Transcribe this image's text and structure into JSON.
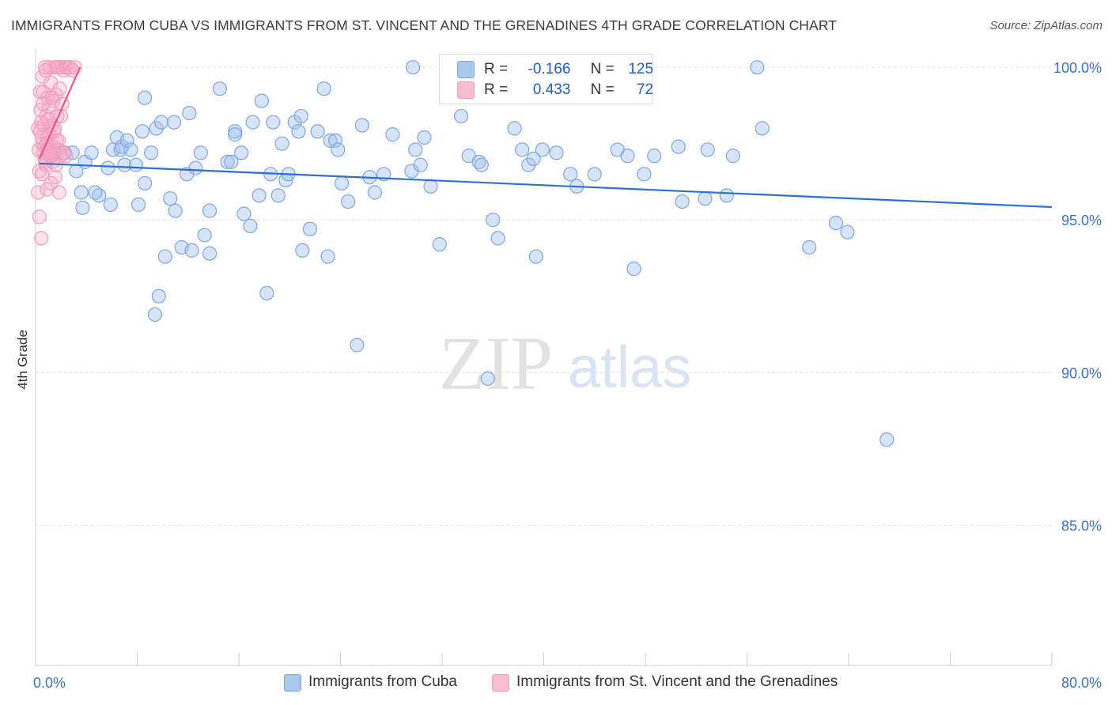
{
  "title": "IMMIGRANTS FROM CUBA VS IMMIGRANTS FROM ST. VINCENT AND THE GRENADINES 4TH GRADE CORRELATION CHART",
  "source": "Source: ZipAtlas.com",
  "watermark": {
    "zip": "ZIP",
    "atlas": "atlas"
  },
  "legend": {
    "rows": [
      {
        "r_label": "R =",
        "r_value": "-0.166",
        "n_label": "N =",
        "n_value": "125"
      },
      {
        "r_label": "R =",
        "r_value": "0.433",
        "n_label": "N =",
        "n_value": "72"
      }
    ]
  },
  "bottom_legend": [
    "Immigrants from Cuba",
    "Immigrants from St. Vincent and the Grenadines"
  ],
  "chart_data": {
    "type": "scatter",
    "ylabel": "4th Grade",
    "xlabel": "",
    "xlim": [
      0,
      80
    ],
    "ylim": [
      80.4,
      100.6
    ],
    "x_tick_labels": [
      {
        "value": 0,
        "label": "0.0%"
      },
      {
        "value": 80,
        "label": "80.0%"
      }
    ],
    "y_tick_labels": [
      {
        "value": 100,
        "label": "100.0%"
      },
      {
        "value": 95,
        "label": "95.0%"
      },
      {
        "value": 90,
        "label": "90.0%"
      },
      {
        "value": 85,
        "label": "85.0%"
      }
    ],
    "x_minor_ticks": [
      0,
      8,
      16,
      24,
      32,
      40,
      48,
      56,
      64,
      72,
      80
    ],
    "grid": true,
    "colors": {
      "cuba_fill": "rgba(166,196,238,0.45)",
      "cuba_stroke": "#7ea5e0",
      "cuba_line": "#2e6fd0",
      "svg_fill": "rgba(246,170,198,0.35)",
      "svg_stroke": "#f29bbb",
      "svg_line": "#e8558a",
      "legend_cuba": "#a9c6ef",
      "legend_svg": "#f8bcd1",
      "axis_label_blue": "#3a72c8",
      "grid": "#e3e3e3"
    },
    "series": [
      {
        "name": "Immigrants from Cuba",
        "trend": {
          "x": [
            0.3,
            80
          ],
          "y": [
            96.85,
            95.42
          ]
        },
        "points": [
          [
            1.2,
            97.2
          ],
          [
            1.8,
            97.3
          ],
          [
            2.3,
            97.2
          ],
          [
            2.9,
            97.2
          ],
          [
            3.6,
            95.9
          ],
          [
            3.2,
            96.6
          ],
          [
            3.7,
            95.4
          ],
          [
            3.9,
            96.9
          ],
          [
            4.4,
            97.2
          ],
          [
            5.0,
            95.8
          ],
          [
            4.7,
            95.9
          ],
          [
            5.7,
            96.7
          ],
          [
            5.9,
            95.5
          ],
          [
            6.1,
            97.3
          ],
          [
            6.4,
            97.7
          ],
          [
            6.7,
            97.3
          ],
          [
            7.0,
            96.8
          ],
          [
            6.8,
            97.4
          ],
          [
            7.2,
            97.6
          ],
          [
            7.5,
            97.3
          ],
          [
            7.9,
            96.8
          ],
          [
            8.4,
            97.9
          ],
          [
            8.1,
            95.5
          ],
          [
            8.6,
            96.2
          ],
          [
            8.6,
            99.0
          ],
          [
            9.1,
            97.2
          ],
          [
            9.4,
            91.9
          ],
          [
            9.7,
            92.5
          ],
          [
            9.5,
            98.0
          ],
          [
            9.9,
            98.2
          ],
          [
            10.2,
            93.8
          ],
          [
            10.6,
            95.7
          ],
          [
            10.9,
            98.2
          ],
          [
            11.0,
            95.3
          ],
          [
            11.5,
            94.1
          ],
          [
            11.9,
            96.5
          ],
          [
            12.3,
            94.0
          ],
          [
            12.1,
            98.5
          ],
          [
            12.6,
            96.7
          ],
          [
            13.0,
            97.2
          ],
          [
            13.3,
            94.5
          ],
          [
            13.7,
            95.3
          ],
          [
            13.7,
            93.9
          ],
          [
            14.5,
            99.3
          ],
          [
            15.1,
            96.9
          ],
          [
            15.4,
            96.9
          ],
          [
            15.7,
            97.9
          ],
          [
            15.7,
            97.8
          ],
          [
            16.2,
            97.2
          ],
          [
            16.4,
            95.2
          ],
          [
            16.9,
            94.8
          ],
          [
            17.1,
            98.2
          ],
          [
            17.6,
            95.8
          ],
          [
            17.8,
            98.9
          ],
          [
            18.2,
            92.6
          ],
          [
            18.5,
            96.5
          ],
          [
            18.7,
            98.2
          ],
          [
            19.1,
            95.8
          ],
          [
            19.4,
            97.5
          ],
          [
            19.7,
            96.3
          ],
          [
            19.9,
            96.5
          ],
          [
            20.4,
            98.2
          ],
          [
            20.7,
            97.9
          ],
          [
            20.9,
            98.4
          ],
          [
            21.0,
            94.0
          ],
          [
            21.6,
            94.7
          ],
          [
            22.2,
            97.9
          ],
          [
            22.7,
            99.3
          ],
          [
            23.0,
            93.8
          ],
          [
            23.2,
            97.6
          ],
          [
            23.6,
            97.6
          ],
          [
            23.8,
            97.3
          ],
          [
            24.1,
            96.2
          ],
          [
            24.6,
            95.6
          ],
          [
            25.3,
            90.9
          ],
          [
            25.7,
            98.1
          ],
          [
            26.3,
            96.4
          ],
          [
            26.7,
            95.9
          ],
          [
            27.4,
            96.5
          ],
          [
            28.1,
            97.8
          ],
          [
            29.6,
            96.6
          ],
          [
            29.9,
            97.3
          ],
          [
            30.3,
            96.8
          ],
          [
            30.6,
            97.7
          ],
          [
            31.1,
            96.1
          ],
          [
            29.7,
            100.0
          ],
          [
            31.8,
            94.2
          ],
          [
            33.5,
            98.4
          ],
          [
            34.1,
            97.1
          ],
          [
            34.9,
            96.9
          ],
          [
            35.1,
            96.8
          ],
          [
            35.6,
            89.8
          ],
          [
            36.0,
            95.0
          ],
          [
            36.4,
            94.4
          ],
          [
            37.7,
            98.0
          ],
          [
            38.3,
            97.3
          ],
          [
            38.8,
            96.8
          ],
          [
            39.2,
            97.0
          ],
          [
            39.4,
            93.8
          ],
          [
            39.9,
            97.3
          ],
          [
            41.0,
            97.2
          ],
          [
            42.1,
            96.5
          ],
          [
            42.6,
            96.1
          ],
          [
            44.0,
            96.5
          ],
          [
            45.8,
            97.3
          ],
          [
            46.6,
            97.1
          ],
          [
            47.1,
            93.4
          ],
          [
            47.9,
            96.5
          ],
          [
            48.7,
            97.1
          ],
          [
            50.6,
            97.4
          ],
          [
            50.9,
            95.6
          ],
          [
            52.7,
            95.7
          ],
          [
            52.9,
            97.3
          ],
          [
            54.4,
            95.8
          ],
          [
            54.9,
            97.1
          ],
          [
            56.8,
            100.0
          ],
          [
            57.2,
            98.0
          ],
          [
            60.9,
            94.1
          ],
          [
            63.0,
            94.9
          ],
          [
            63.9,
            94.6
          ],
          [
            67.0,
            87.8
          ]
        ]
      },
      {
        "name": "Immigrants from St. Vincent and the Grenadines",
        "trend": {
          "x": [
            0.3,
            3.5
          ],
          "y": [
            97.0,
            100.0
          ]
        },
        "points": [
          [
            0.2,
            98.0
          ],
          [
            0.3,
            96.6
          ],
          [
            0.25,
            97.3
          ],
          [
            0.35,
            97.9
          ],
          [
            0.4,
            98.6
          ],
          [
            0.5,
            96.5
          ],
          [
            0.55,
            97.5
          ],
          [
            0.6,
            99.2
          ],
          [
            0.65,
            98.1
          ],
          [
            0.7,
            97.0
          ],
          [
            0.75,
            100.0
          ],
          [
            0.8,
            96.8
          ],
          [
            0.85,
            98.4
          ],
          [
            0.9,
            97.7
          ],
          [
            0.95,
            99.0
          ],
          [
            1.0,
            97.2
          ],
          [
            1.05,
            98.7
          ],
          [
            1.1,
            100.0
          ],
          [
            1.15,
            97.4
          ],
          [
            1.2,
            99.5
          ],
          [
            1.25,
            97.1
          ],
          [
            1.3,
            98.1
          ],
          [
            1.35,
            96.9
          ],
          [
            1.4,
            98.9
          ],
          [
            1.45,
            97.9
          ],
          [
            1.5,
            100.0
          ],
          [
            1.55,
            96.4
          ],
          [
            1.6,
            99.1
          ],
          [
            1.65,
            97.6
          ],
          [
            1.7,
            98.4
          ],
          [
            1.75,
            100.0
          ],
          [
            1.8,
            97.3
          ],
          [
            1.85,
            95.9
          ],
          [
            1.9,
            99.3
          ],
          [
            1.95,
            97.1
          ],
          [
            2.0,
            100.0
          ],
          [
            2.1,
            98.8
          ],
          [
            2.2,
            97.2
          ],
          [
            2.3,
            100.0
          ],
          [
            2.4,
            97.1
          ],
          [
            0.2,
            95.9
          ],
          [
            0.3,
            95.1
          ],
          [
            0.45,
            94.4
          ],
          [
            0.55,
            99.7
          ],
          [
            0.6,
            98.8
          ],
          [
            0.7,
            97.4
          ],
          [
            0.8,
            99.9
          ],
          [
            0.9,
            96.0
          ],
          [
            1.0,
            98.3
          ],
          [
            1.1,
            97.8
          ],
          [
            1.2,
            96.2
          ],
          [
            1.3,
            99.0
          ],
          [
            1.4,
            97.4
          ],
          [
            1.5,
            98.0
          ],
          [
            1.6,
            96.8
          ],
          [
            1.7,
            100.0
          ],
          [
            1.8,
            97.6
          ],
          [
            2.0,
            98.4
          ],
          [
            2.2,
            99.9
          ],
          [
            2.5,
            100.0
          ],
          [
            2.7,
            100.0
          ],
          [
            2.9,
            99.9
          ],
          [
            3.1,
            100.0
          ],
          [
            0.35,
            99.2
          ],
          [
            0.45,
            98.2
          ],
          [
            0.5,
            97.7
          ],
          [
            0.65,
            97.2
          ],
          [
            0.75,
            96.9
          ],
          [
            0.85,
            97.5
          ],
          [
            0.95,
            97.3
          ],
          [
            1.05,
            97.2
          ],
          [
            1.15,
            97.1
          ]
        ]
      }
    ]
  }
}
